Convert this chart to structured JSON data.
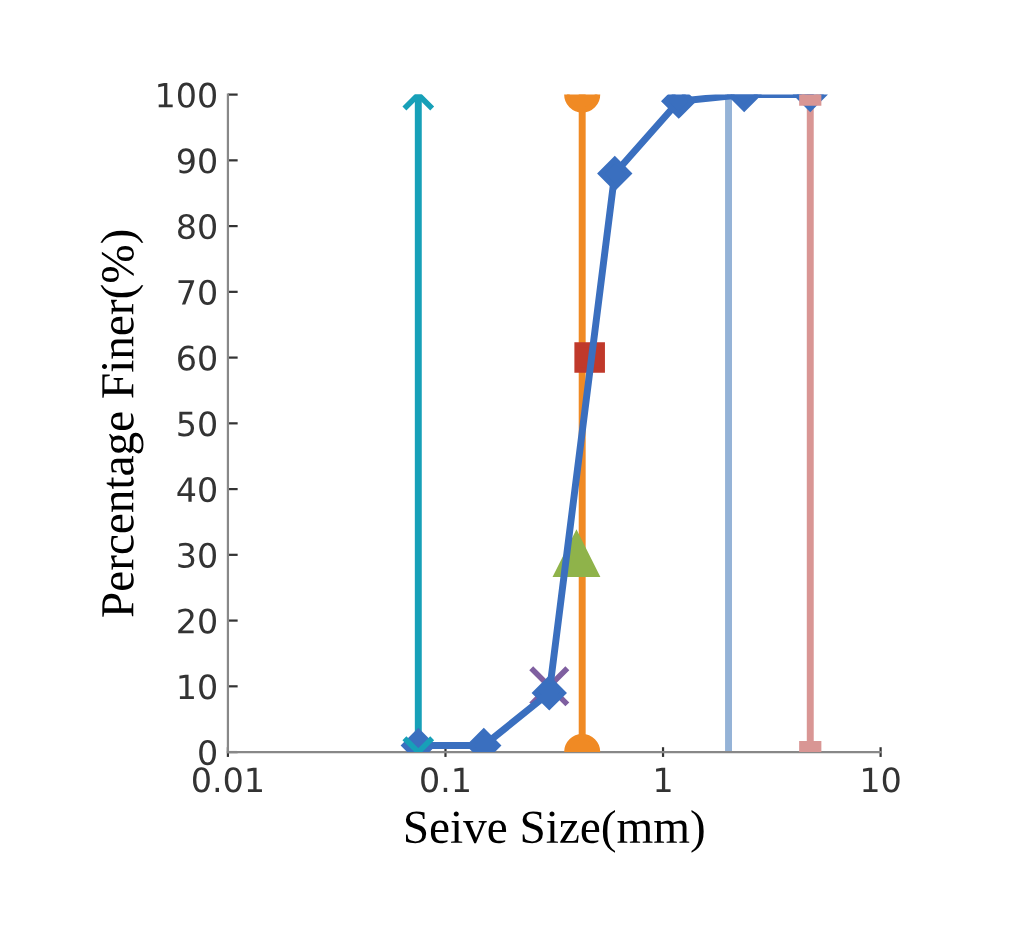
{
  "chart_data": {
    "type": "line",
    "xlabel": "Seive Size(mm)",
    "ylabel": "Percentage Finer(%)",
    "log": "x",
    "xlim": [
      0.01,
      10
    ],
    "xticks": [
      0.01,
      0.1,
      1,
      10
    ],
    "ylim": [
      0,
      100
    ],
    "yticks": [
      0,
      10,
      20,
      30,
      40,
      50,
      60,
      70,
      80,
      90,
      100
    ],
    "series": [
      {
        "color": "#17a0b8",
        "marker": "cross",
        "x": [
          0.075,
          0.075
        ],
        "values": [
          0,
          100
        ]
      },
      {
        "color": "#f08a24",
        "marker": "circle",
        "x": [
          0.425,
          0.425
        ],
        "values": [
          0,
          100
        ]
      },
      {
        "color": "#95b3d7",
        "marker": "none",
        "x": [
          2.0,
          2.0
        ],
        "values": [
          0,
          100
        ]
      },
      {
        "color": "#d99694",
        "marker": "square",
        "x": [
          4.75,
          4.75
        ],
        "values": [
          0,
          100
        ]
      },
      {
        "type": "scatter",
        "color": "#7f5fa0",
        "marker": "cross",
        "x": [
          0.3
        ],
        "values": [
          10
        ]
      },
      {
        "type": "scatter",
        "color": "#8fb34a",
        "marker": "triangle",
        "x": [
          0.4
        ],
        "values": [
          30
        ]
      },
      {
        "type": "scatter",
        "color": "#c0392b",
        "marker": "square",
        "x": [
          0.46
        ],
        "values": [
          60
        ]
      },
      {
        "color": "#3a6fbf",
        "marker": "diamond",
        "x": [
          0.075,
          0.15,
          0.3,
          0.6,
          1.18,
          2.36,
          4.75
        ],
        "values": [
          1,
          1,
          9,
          88,
          99,
          100,
          100
        ]
      }
    ]
  }
}
